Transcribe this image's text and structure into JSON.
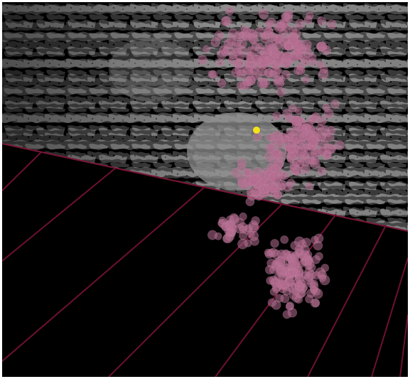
{
  "viewport": {
    "background_color": "#000000",
    "noise_color": "#8c8c8c",
    "grid_line_color": "#6e1030",
    "marker_color": "#b56e90",
    "highlight_color": "#f4e21a"
  },
  "scene": {
    "marker_count": 560,
    "grid_line_count": 9
  }
}
